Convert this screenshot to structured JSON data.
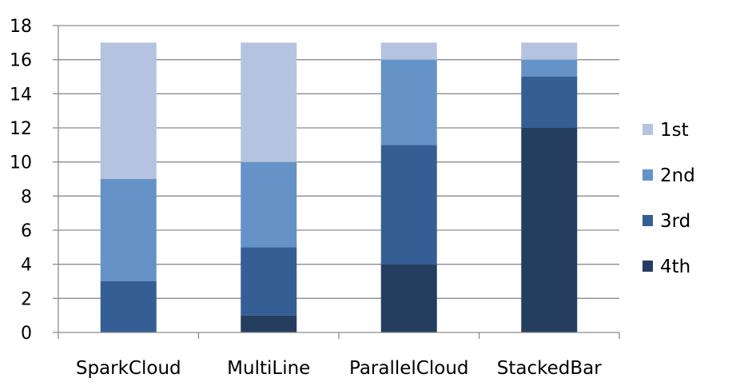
{
  "chart_data": {
    "type": "bar",
    "stacked": true,
    "title": "",
    "xlabel": "",
    "ylabel": "",
    "categories": [
      "SparkCloud",
      "MultiLine",
      "ParallelCloud",
      "StackedBar"
    ],
    "series": [
      {
        "name": "4th",
        "values": [
          0,
          1,
          4,
          12
        ],
        "color": "#253e5f"
      },
      {
        "name": "3rd",
        "values": [
          3,
          4,
          7,
          3
        ],
        "color": "#355f94"
      },
      {
        "name": "2nd",
        "values": [
          6,
          5,
          5,
          1
        ],
        "color": "#6593c7"
      },
      {
        "name": "1st",
        "values": [
          8,
          7,
          1,
          1
        ],
        "color": "#b4c4e0"
      }
    ],
    "legend_order": [
      "1st",
      "2nd",
      "3rd",
      "4th"
    ],
    "ylim": [
      0,
      18
    ],
    "yticks": [
      0,
      2,
      4,
      6,
      8,
      10,
      12,
      14,
      16,
      18
    ],
    "grid": true,
    "legend_position": "right"
  }
}
